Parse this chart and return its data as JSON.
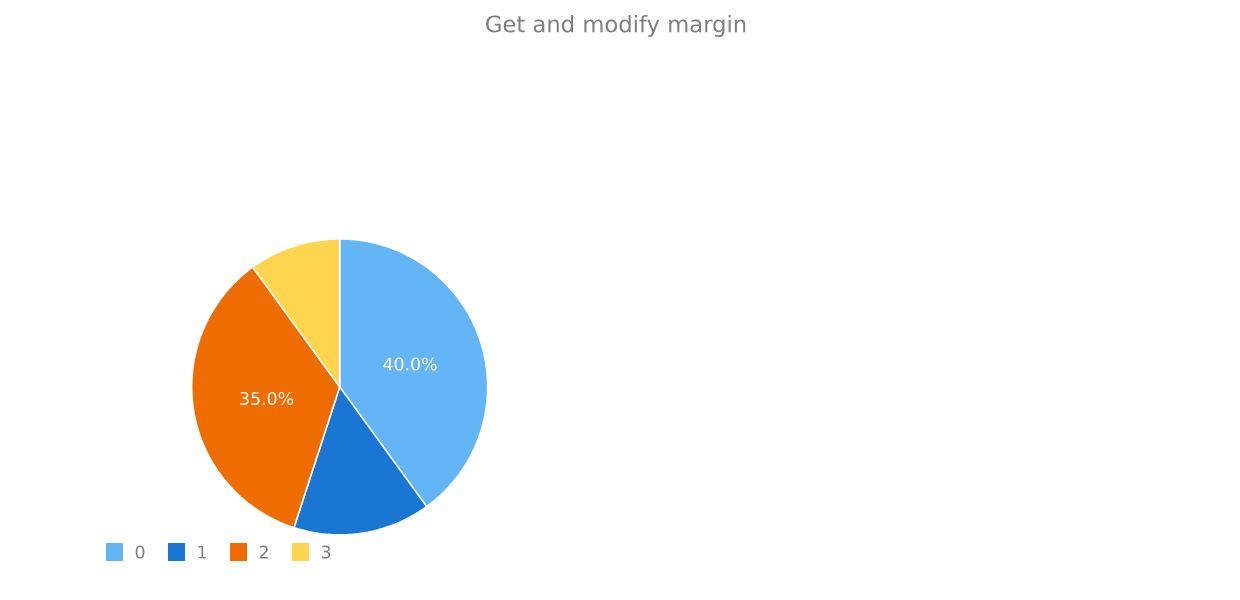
{
  "chart_data": {
    "type": "pie",
    "title": "Get and modify margin",
    "categories": [
      "0",
      "1",
      "2",
      "3"
    ],
    "values": [
      40,
      15,
      35,
      10
    ],
    "value_labels": [
      "40.0%",
      null,
      "35.0%",
      null
    ],
    "colors": [
      "#64b5f6",
      "#1976d2",
      "#ef6c00",
      "#ffd54f"
    ],
    "legend": "bottom left"
  }
}
